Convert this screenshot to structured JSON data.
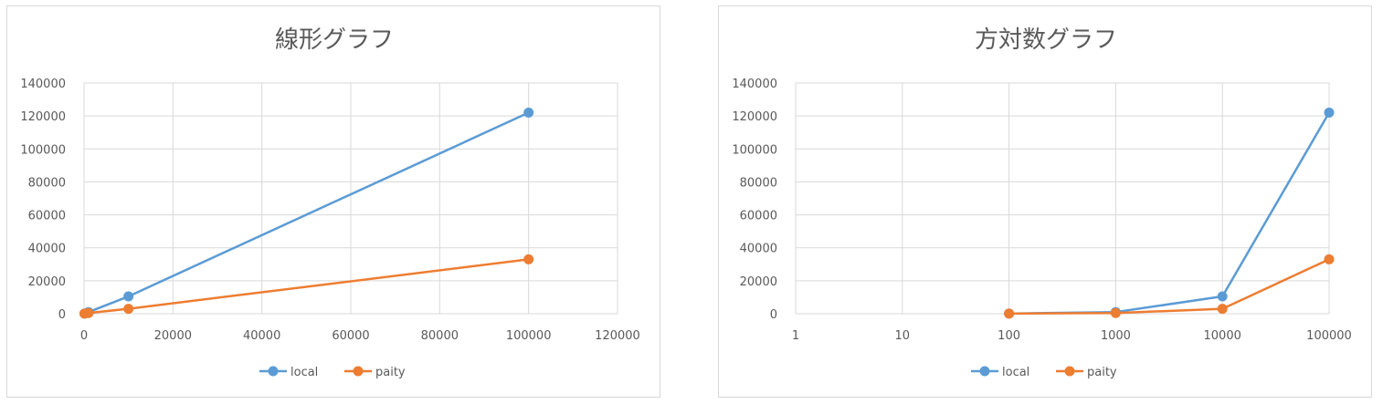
{
  "chart_data": [
    {
      "type": "line",
      "title": "線形グラフ",
      "xscale": "linear",
      "xlim": [
        0,
        120000
      ],
      "ylim": [
        0,
        140000
      ],
      "xticks": [
        0,
        20000,
        40000,
        60000,
        80000,
        100000,
        120000
      ],
      "yticks": [
        0,
        20000,
        40000,
        60000,
        80000,
        100000,
        120000,
        140000
      ],
      "xtick_labels": [
        "0",
        "20000",
        "40000",
        "60000",
        "80000",
        "100000",
        "120000"
      ],
      "ytick_labels": [
        "0",
        "20000",
        "40000",
        "60000",
        "80000",
        "100000",
        "120000",
        "140000"
      ],
      "grid": true,
      "legend_position": "bottom",
      "x": [
        100,
        1000,
        10000,
        100000
      ],
      "series": [
        {
          "name": "local",
          "color": "#5b9bd5",
          "values": [
            100,
            1000,
            10500,
            122000
          ]
        },
        {
          "name": "paity",
          "color": "#ed7d31",
          "values": [
            100,
            400,
            3000,
            33000
          ]
        }
      ]
    },
    {
      "type": "line",
      "title": "方対数グラフ",
      "xscale": "log",
      "xlim": [
        1,
        100000
      ],
      "ylim": [
        0,
        140000
      ],
      "xticks": [
        1,
        10,
        100,
        1000,
        10000,
        100000
      ],
      "yticks": [
        0,
        20000,
        40000,
        60000,
        80000,
        100000,
        120000,
        140000
      ],
      "xtick_labels": [
        "1",
        "10",
        "100",
        "1000",
        "10000",
        "100000"
      ],
      "ytick_labels": [
        "0",
        "20000",
        "40000",
        "60000",
        "80000",
        "100000",
        "120000",
        "140000"
      ],
      "grid": true,
      "legend_position": "bottom",
      "x": [
        100,
        1000,
        10000,
        100000
      ],
      "series": [
        {
          "name": "local",
          "color": "#5b9bd5",
          "values": [
            100,
            1000,
            10500,
            122000
          ]
        },
        {
          "name": "paity",
          "color": "#ed7d31",
          "values": [
            100,
            400,
            3000,
            33000
          ]
        }
      ]
    }
  ]
}
